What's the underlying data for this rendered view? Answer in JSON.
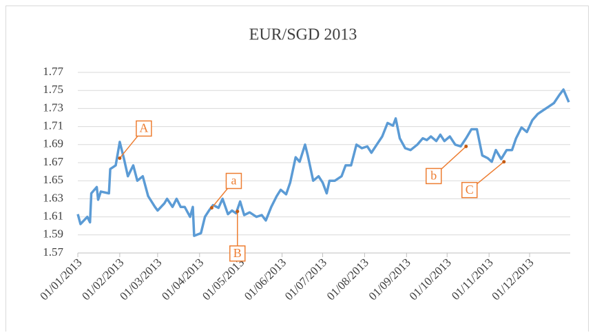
{
  "chart_data": {
    "type": "line",
    "title": "EUR/SGD 2013",
    "x": [
      "01/01/2013",
      "03/01/2013",
      "08/01/2013",
      "10/01/2013",
      "11/01/2013",
      "15/01/2013",
      "16/01/2013",
      "18/01/2013",
      "24/01/2013",
      "25/01/2013",
      "29/01/2013",
      "01/02/2013",
      "04/02/2013",
      "07/02/2013",
      "11/02/2013",
      "14/02/2013",
      "18/02/2013",
      "22/02/2013",
      "27/02/2013",
      "01/03/2013",
      "06/03/2013",
      "08/03/2013",
      "12/03/2013",
      "15/03/2013",
      "18/03/2013",
      "21/03/2013",
      "25/03/2013",
      "27/03/2013",
      "28/03/2013",
      "02/04/2013",
      "05/04/2013",
      "08/04/2013",
      "11/04/2013",
      "15/04/2013",
      "18/04/2013",
      "22/04/2013",
      "25/04/2013",
      "28/04/2013",
      "01/05/2013",
      "04/05/2013",
      "08/05/2013",
      "13/05/2013",
      "17/05/2013",
      "20/05/2013",
      "24/05/2013",
      "28/05/2013",
      "31/05/2013",
      "04/06/2013",
      "07/06/2013",
      "11/06/2013",
      "14/06/2013",
      "18/06/2013",
      "20/06/2013",
      "24/06/2013",
      "28/06/2013",
      "01/07/2013",
      "04/07/2013",
      "06/07/2013",
      "10/07/2013",
      "15/07/2013",
      "18/07/2013",
      "22/07/2013",
      "26/07/2013",
      "30/07/2013",
      "03/08/2013",
      "06/08/2013",
      "10/08/2013",
      "14/08/2013",
      "18/08/2013",
      "22/08/2013",
      "24/08/2013",
      "27/08/2013",
      "31/08/2013",
      "04/09/2013",
      "09/09/2013",
      "13/09/2013",
      "16/09/2013",
      "19/09/2013",
      "23/09/2013",
      "26/09/2013",
      "29/09/2013",
      "03/10/2013",
      "07/10/2013",
      "11/10/2013",
      "15/10/2013",
      "19/10/2013",
      "23/10/2013",
      "27/10/2013",
      "31/10/2013",
      "03/11/2013",
      "06/11/2013",
      "10/11/2013",
      "14/11/2013",
      "18/11/2013",
      "21/11/2013",
      "25/11/2013",
      "29/11/2013",
      "03/12/2013",
      "07/12/2013",
      "11/12/2013",
      "15/12/2013",
      "19/12/2013",
      "23/12/2013",
      "26/12/2013",
      "30/12/2013"
    ],
    "series": [
      {
        "color": "#5b9bd5",
        "values": [
          1.613,
          1.602,
          1.61,
          1.604,
          1.636,
          1.643,
          1.629,
          1.638,
          1.636,
          1.663,
          1.667,
          1.693,
          1.675,
          1.655,
          1.667,
          1.65,
          1.655,
          1.633,
          1.621,
          1.617,
          1.625,
          1.63,
          1.621,
          1.63,
          1.621,
          1.621,
          1.61,
          1.621,
          1.589,
          1.592,
          1.61,
          1.617,
          1.623,
          1.62,
          1.63,
          1.613,
          1.617,
          1.614,
          1.627,
          1.612,
          1.615,
          1.61,
          1.612,
          1.606,
          1.621,
          1.633,
          1.64,
          1.635,
          1.648,
          1.676,
          1.671,
          1.69,
          1.678,
          1.65,
          1.655,
          1.648,
          1.636,
          1.65,
          1.65,
          1.655,
          1.667,
          1.667,
          1.69,
          1.686,
          1.688,
          1.681,
          1.69,
          1.699,
          1.714,
          1.711,
          1.719,
          1.697,
          1.686,
          1.684,
          1.69,
          1.697,
          1.695,
          1.699,
          1.694,
          1.701,
          1.694,
          1.699,
          1.69,
          1.688,
          1.697,
          1.707,
          1.707,
          1.678,
          1.675,
          1.671,
          1.684,
          1.674,
          1.684,
          1.684,
          1.697,
          1.709,
          1.704,
          1.717,
          1.724,
          1.728,
          1.732,
          1.736,
          1.745,
          1.751,
          1.737
        ]
      }
    ],
    "annotations": [
      {
        "label": "A",
        "x": "01/02/2013",
        "value": 1.675
      },
      {
        "label": "a",
        "x": "10/04/2013",
        "value": 1.62
      },
      {
        "label": "B",
        "x": "29/04/2013",
        "value": 1.616
      },
      {
        "label": "b",
        "x": "15/10/2013",
        "value": 1.688
      },
      {
        "label": "C",
        "x": "12/11/2013",
        "value": 1.671
      }
    ],
    "annotation_color": "#ed7d31",
    "xlim": [
      "01/01/2013",
      "31/12/2013"
    ],
    "xticks": [
      "01/01/2013",
      "01/02/2013",
      "01/03/2013",
      "01/04/2013",
      "01/05/2013",
      "01/06/2013",
      "01/07/2013",
      "01/08/2013",
      "01/09/2013",
      "01/10/2013",
      "01/11/2013",
      "01/12/2013"
    ],
    "ylim": [
      1.57,
      1.77
    ],
    "yticks": [
      1.57,
      1.59,
      1.61,
      1.63,
      1.65,
      1.67,
      1.69,
      1.71,
      1.73,
      1.75,
      1.77
    ],
    "grid": true
  }
}
